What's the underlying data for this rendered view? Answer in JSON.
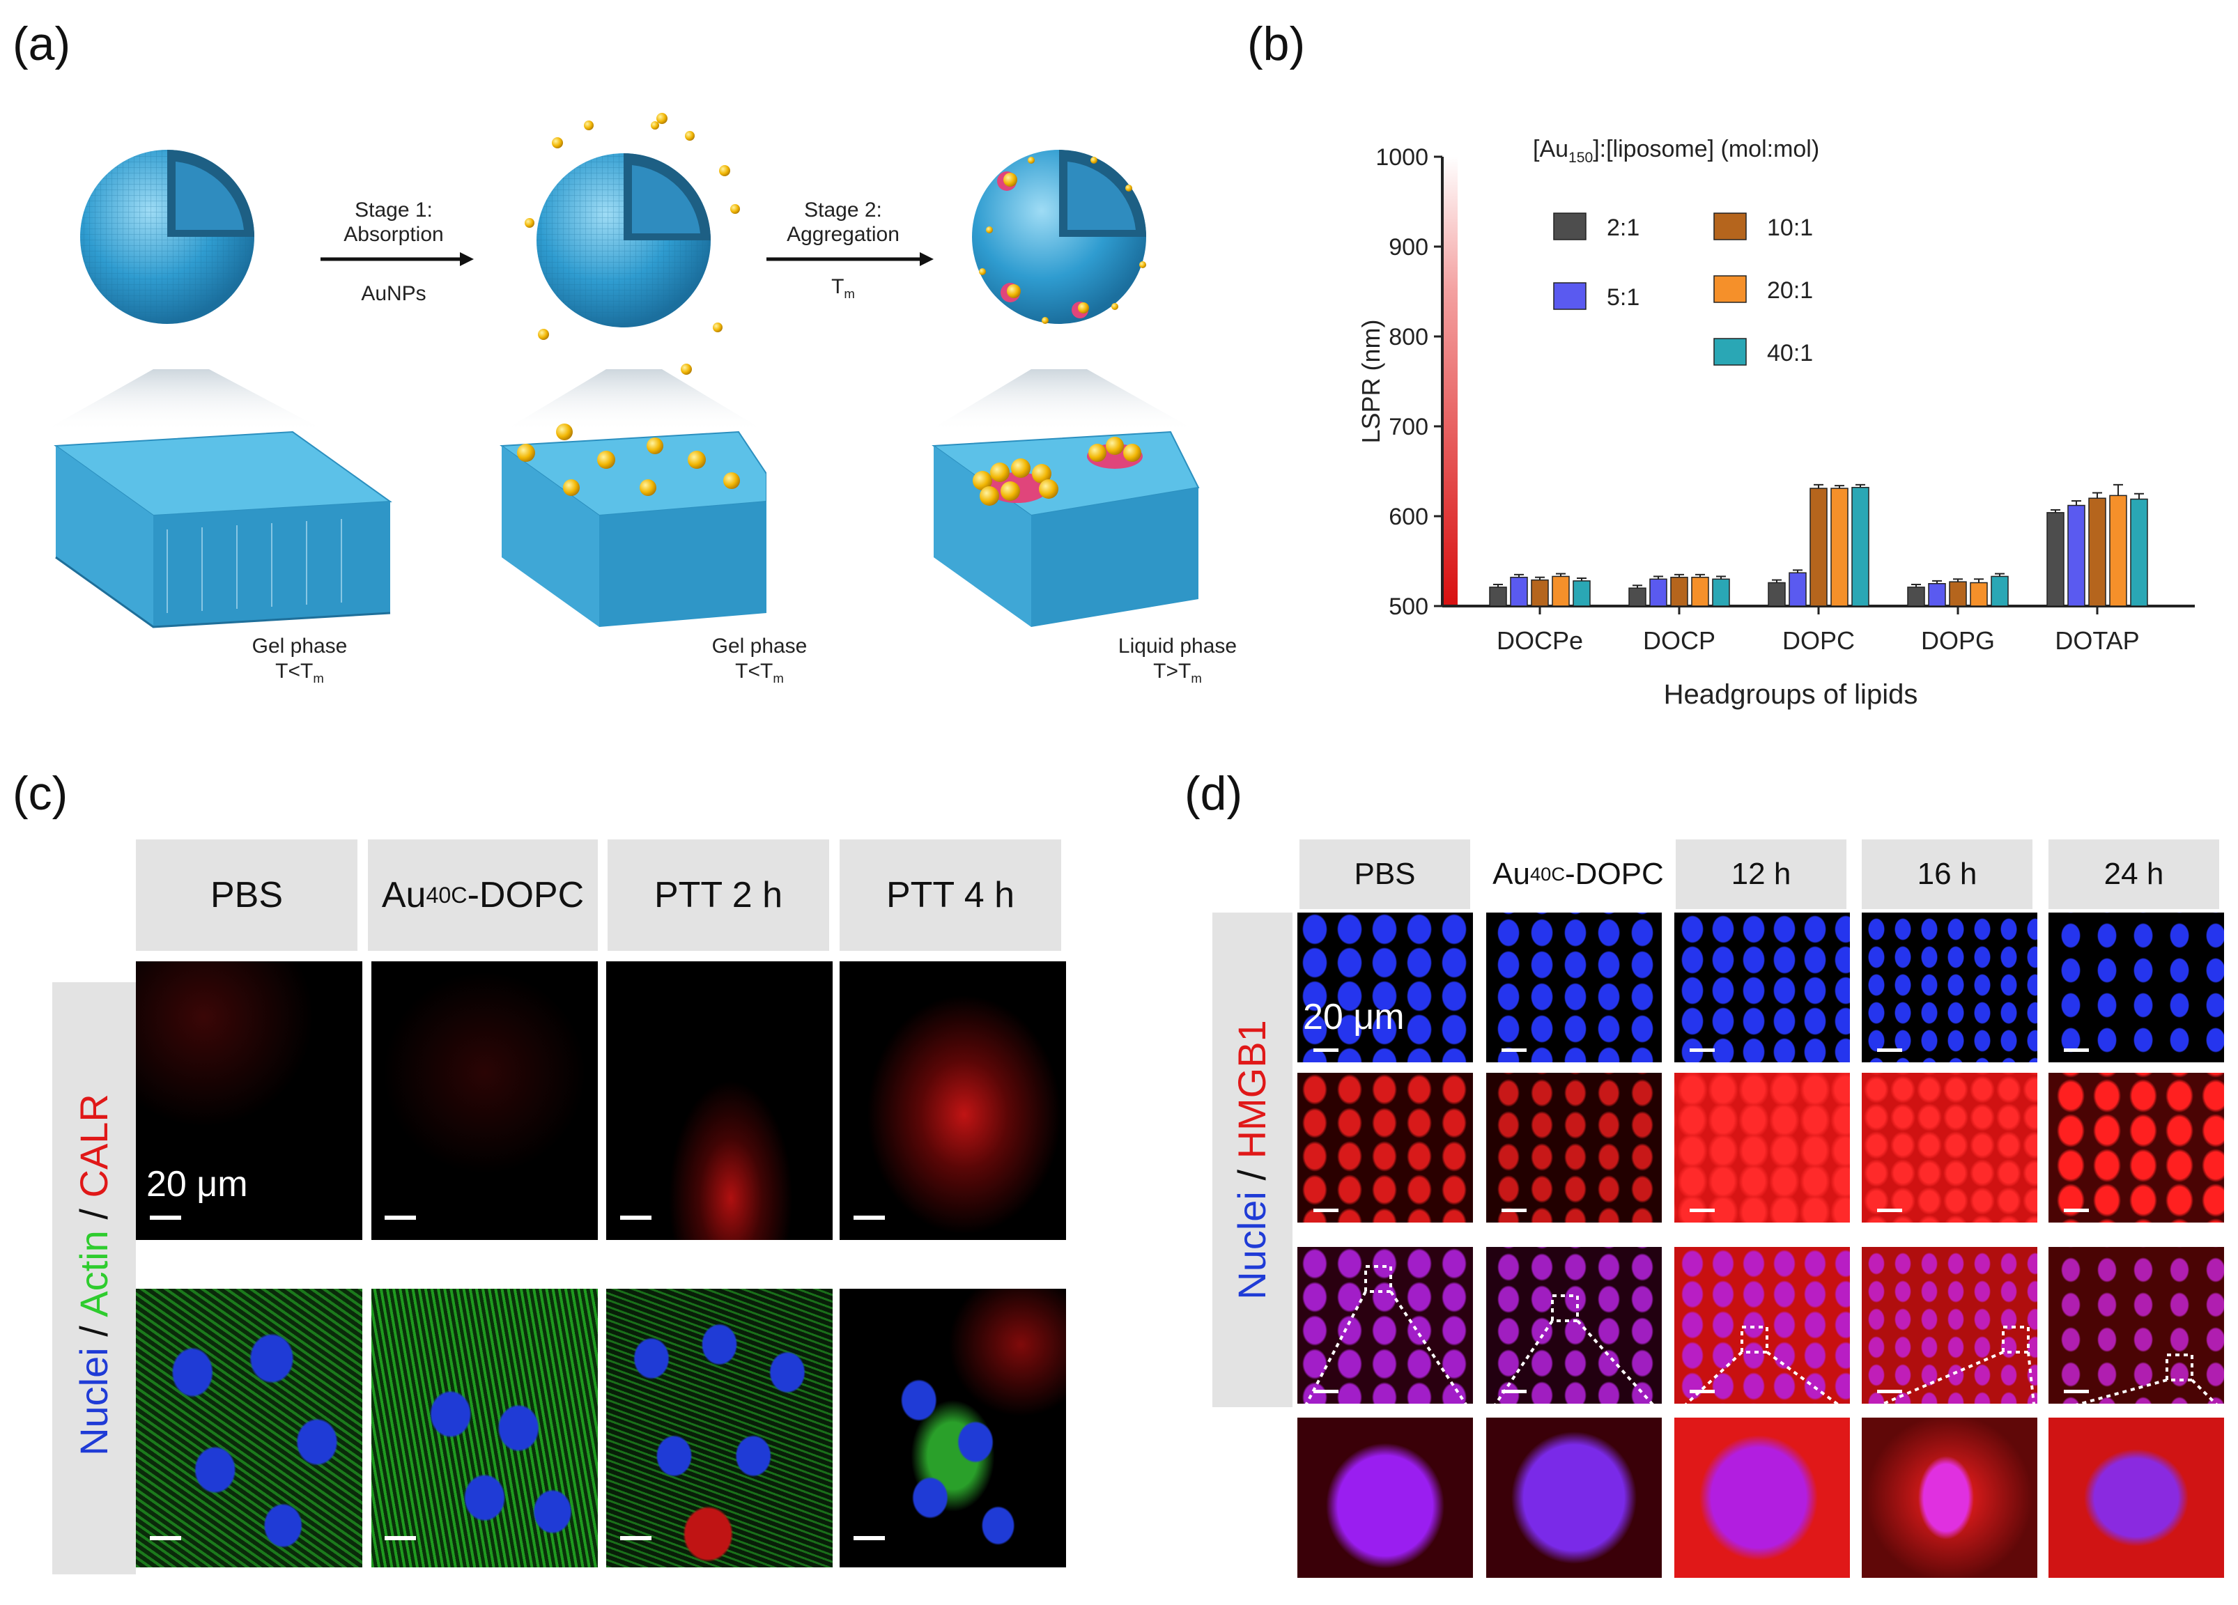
{
  "panels": {
    "a": {
      "label": "(a)",
      "stage1": {
        "line1": "Stage 1:",
        "line2": "Absorption",
        "below": "AuNPs"
      },
      "stage2": {
        "line1": "Stage 2:",
        "line2": "Aggregation",
        "below": "T",
        "below_sub": "m"
      },
      "phases": [
        {
          "name": "Gel phase",
          "cond": "T<T",
          "sub": "m"
        },
        {
          "name": "Gel phase",
          "cond": "T<T",
          "sub": "m"
        },
        {
          "name": "Liquid phase",
          "cond": "T>T",
          "sub": "m"
        }
      ],
      "colors": {
        "liposome": "#3fa7d6",
        "gold": "#f2b705",
        "aggregate": "#e0457b"
      }
    },
    "b": {
      "label": "(b)",
      "legend_title_pre": "[Au",
      "legend_title_sub": "150",
      "legend_title_post": "]:[liposome]  (mol:mol)"
    },
    "c": {
      "label": "(c)",
      "headers": [
        "PBS",
        "Au",
        "PTT 2 h",
        "PTT 4 h"
      ],
      "header_au_sub": "40C",
      "header_au_post": "-DOPC",
      "side": {
        "nuclei": "Nuclei",
        "sep1": " / ",
        "actin": "Actin",
        "sep2": " / ",
        "calr": "CALR"
      },
      "scale": "20 μm",
      "colors": {
        "nuclei": "#1f3bd6",
        "actin": "#2ecc2e",
        "calr": "#e01818"
      }
    },
    "d": {
      "label": "(d)",
      "headers": [
        "PBS",
        "Au",
        "12 h",
        "16 h",
        "24 h"
      ],
      "header_au_sub": "40C",
      "header_au_post": "-DOPC",
      "side": {
        "nuclei": "Nuclei",
        "sep": " / ",
        "hmgb1": "HMGB1"
      },
      "scale": "20 μm"
    }
  },
  "chart_data": {
    "type": "bar",
    "categories": [
      "DOCPe",
      "DOCP",
      "DOPC",
      "DOPG",
      "DOTAP"
    ],
    "series": [
      {
        "name": "2:1",
        "color": "#4d4d4d",
        "values": [
          521,
          520,
          526,
          521,
          604
        ]
      },
      {
        "name": "5:1",
        "color": "#5a5af0",
        "values": [
          532,
          530,
          537,
          525,
          612
        ]
      },
      {
        "name": "10:1",
        "color": "#b5651d",
        "values": [
          529,
          532,
          631,
          527,
          620
        ]
      },
      {
        "name": "20:1",
        "color": "#f5902a",
        "values": [
          533,
          532,
          631,
          526,
          623
        ]
      },
      {
        "name": "40:1",
        "color": "#2aa7b5",
        "values": [
          528,
          530,
          632,
          533,
          619
        ]
      }
    ],
    "errors": [
      [
        3,
        3,
        3,
        3,
        3
      ],
      [
        3,
        3,
        3,
        3,
        5
      ],
      [
        3,
        3,
        4,
        3,
        6
      ],
      [
        3,
        3,
        3,
        4,
        12
      ],
      [
        3,
        3,
        3,
        3,
        6
      ]
    ],
    "xlabel": "Headgroups of lipids",
    "ylabel": "LSPR (nm)",
    "ylim": [
      500,
      1000
    ],
    "yticks": [
      "500",
      "600",
      "700",
      "800",
      "900",
      "1000"
    ]
  }
}
